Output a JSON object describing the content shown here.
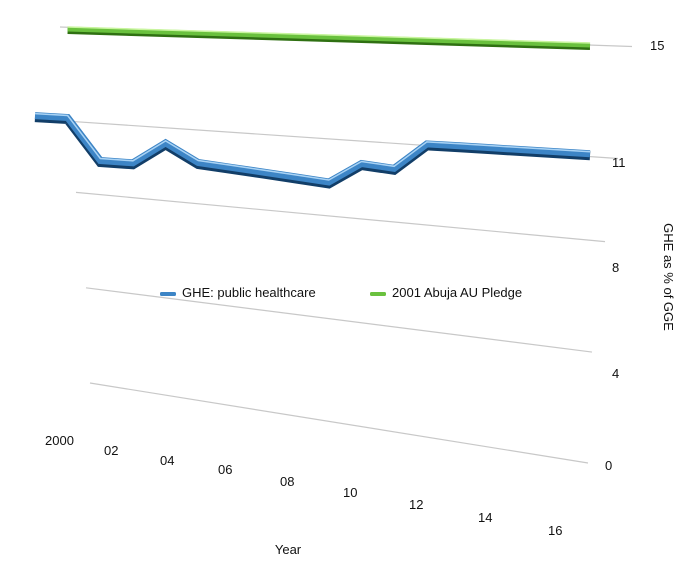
{
  "chart_data": {
    "type": "line",
    "title": "",
    "xlabel": "Year",
    "ylabel": "GHE as % of GGE",
    "x_tick_labels": [
      "2000",
      "02",
      "04",
      "06",
      "08",
      "10",
      "12",
      "14",
      "16"
    ],
    "y_tick_labels": [
      "0",
      "4",
      "8",
      "11",
      "15"
    ],
    "y_ticks": [
      0,
      4,
      8,
      11,
      15
    ],
    "ylim": [
      0,
      15
    ],
    "xlim": [
      2000,
      2017
    ],
    "grid": true,
    "legend_position": "center",
    "series": [
      {
        "name": "GHE: public healthcare",
        "color": "#3d85c6",
        "x": [
          2000,
          2001,
          2002,
          2003,
          2004,
          2005,
          2006,
          2007,
          2008,
          2009,
          2010,
          2011,
          2012,
          2013,
          2014,
          2015,
          2016,
          2017
        ],
        "values": [
          11.3,
          11.3,
          9.6,
          9.6,
          10.5,
          9.8,
          9.7,
          9.6,
          9.5,
          9.4,
          10.2,
          10.1,
          11.1,
          11.1,
          11.1,
          11.1,
          11.1,
          11.1
        ]
      },
      {
        "name": "2001 Abuja AU Pledge",
        "color": "#6ac13e",
        "x": [
          2001,
          2017
        ],
        "values": [
          15,
          15
        ]
      }
    ]
  }
}
